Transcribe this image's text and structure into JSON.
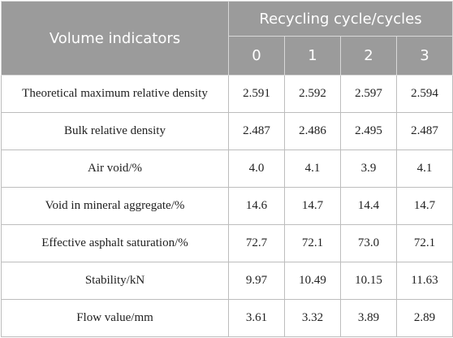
{
  "table": {
    "header": {
      "indicator_label": "Volume indicators",
      "group_label": "Recycling cycle/cycles",
      "cycles": [
        "0",
        "1",
        "2",
        "3"
      ]
    },
    "rows": [
      {
        "label": "Theoretical maximum relative density",
        "values": [
          "2.591",
          "2.592",
          "2.597",
          "2.594"
        ]
      },
      {
        "label": "Bulk relative density",
        "values": [
          "2.487",
          "2.486",
          "2.495",
          "2.487"
        ]
      },
      {
        "label": "Air void/%",
        "values": [
          "4.0",
          "4.1",
          "3.9",
          "4.1"
        ]
      },
      {
        "label": "Void in mineral aggregate/%",
        "values": [
          "14.6",
          "14.7",
          "14.4",
          "14.7"
        ]
      },
      {
        "label": "Effective asphalt saturation/%",
        "values": [
          "72.7",
          "72.1",
          "73.0",
          "72.1"
        ]
      },
      {
        "label": "Stability/kN",
        "values": [
          "9.97",
          "10.49",
          "10.15",
          "11.63"
        ]
      },
      {
        "label": "Flow value/mm",
        "values": [
          "3.61",
          "3.32",
          "3.89",
          "2.89"
        ]
      }
    ]
  }
}
